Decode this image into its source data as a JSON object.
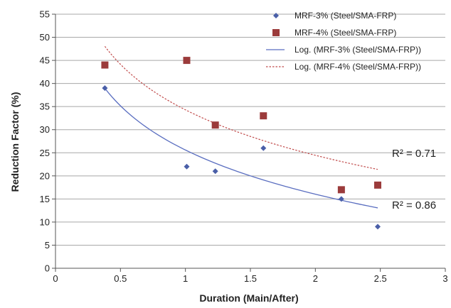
{
  "chart_data": {
    "type": "scatter",
    "xlabel": "Duration (Main/After)",
    "ylabel": "Reduction Factor (%)",
    "xlim": [
      0,
      3
    ],
    "ylim": [
      0,
      55
    ],
    "x_ticks": [
      "0",
      "0.5",
      "1",
      "1.5",
      "2",
      "2.5",
      "3"
    ],
    "y_ticks": [
      "0",
      "5",
      "10",
      "15",
      "20",
      "25",
      "30",
      "35",
      "40",
      "45",
      "50",
      "55"
    ],
    "grid": "horizontal",
    "legend_position": "top-right",
    "series": [
      {
        "name": "MRF-3% (Steel/SMA-FRP)",
        "marker": "diamond",
        "color": "#4a5fa8",
        "points": [
          {
            "x": 0.38,
            "y": 39
          },
          {
            "x": 1.01,
            "y": 22
          },
          {
            "x": 1.23,
            "y": 21
          },
          {
            "x": 1.6,
            "y": 26
          },
          {
            "x": 2.2,
            "y": 15
          },
          {
            "x": 2.48,
            "y": 9
          }
        ]
      },
      {
        "name": "MRF-4% (Steel/SMA-FRP)",
        "marker": "square",
        "color": "#9b3b3b",
        "points": [
          {
            "x": 0.38,
            "y": 44
          },
          {
            "x": 1.01,
            "y": 45
          },
          {
            "x": 1.23,
            "y": 31
          },
          {
            "x": 1.6,
            "y": 33
          },
          {
            "x": 2.2,
            "y": 17
          },
          {
            "x": 2.48,
            "y": 18
          }
        ]
      }
    ],
    "trendlines": [
      {
        "name": "Log. (MRF-3% (Steel/SMA-FRP))",
        "style": "solid",
        "color": "#5a6ec0",
        "x_range": [
          0.38,
          2.48
        ],
        "a": 25.6,
        "b": -13.8,
        "r2_label": "R² = 0.86"
      },
      {
        "name": "Log. (MRF-4% (Steel/SMA-FRP))",
        "style": "dotted",
        "color": "#c04a4a",
        "x_range": [
          0.38,
          2.48
        ],
        "a": 34.3,
        "b": -14.2,
        "r2_label": "R² = 0.71"
      }
    ]
  }
}
